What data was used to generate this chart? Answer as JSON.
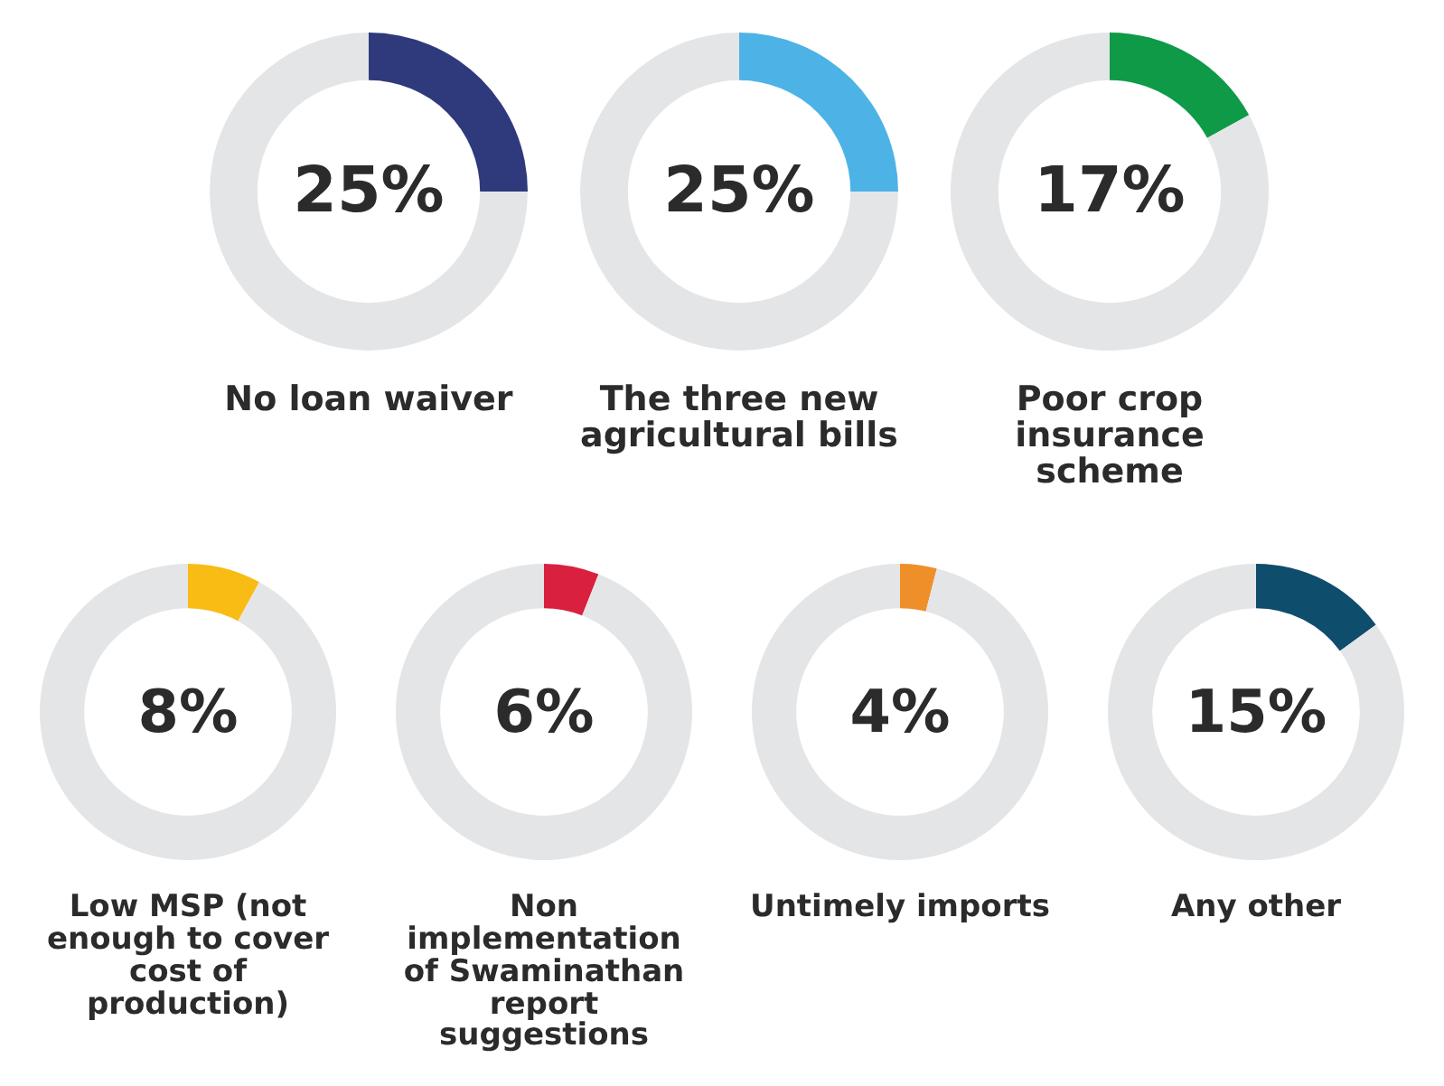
{
  "chart_data": [
    {
      "type": "donut",
      "title": "No loan waiver",
      "categories": [
        null,
        null
      ],
      "values": [
        25,
        75
      ],
      "colors": [
        "#2e3a7c",
        "#e4e5e7"
      ],
      "annotations": [
        "25%"
      ]
    },
    {
      "type": "donut",
      "title": "The three new agricultural bills",
      "categories": [
        null,
        null
      ],
      "values": [
        25,
        75
      ],
      "colors": [
        "#4db3e6",
        "#e4e5e7"
      ],
      "annotations": [
        "25%"
      ]
    },
    {
      "type": "donut",
      "title": "Poor crop insurance scheme",
      "categories": [
        null,
        null
      ],
      "values": [
        17,
        83
      ],
      "colors": [
        "#0f9a48",
        "#e4e5e7"
      ],
      "annotations": [
        "17%"
      ]
    },
    {
      "type": "donut",
      "title": "Low MSP (not enough to cover cost of production)",
      "categories": [
        null,
        null
      ],
      "values": [
        8,
        92
      ],
      "colors": [
        "#f9bc15",
        "#e4e5e7"
      ],
      "annotations": [
        "8%"
      ]
    },
    {
      "type": "donut",
      "title": "Non implementation of Swaminathan report suggestions",
      "categories": [
        null,
        null
      ],
      "values": [
        6,
        94
      ],
      "colors": [
        "#d9203f",
        "#e4e5e7"
      ],
      "annotations": [
        "6%"
      ]
    },
    {
      "type": "donut",
      "title": "Untimely imports",
      "categories": [
        null,
        null
      ],
      "values": [
        4,
        96
      ],
      "colors": [
        "#ef8f2a",
        "#e4e5e7"
      ],
      "annotations": [
        "4%"
      ]
    },
    {
      "type": "donut",
      "title": "Any other",
      "categories": [
        null,
        null
      ],
      "values": [
        15,
        85
      ],
      "colors": [
        "#0e4d6b",
        "#e4e5e7"
      ],
      "annotations": [
        "15%"
      ]
    }
  ]
}
